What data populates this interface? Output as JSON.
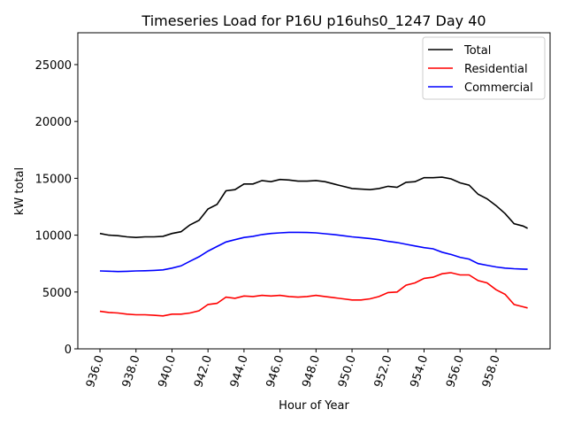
{
  "chart_data": {
    "type": "line",
    "title": "Timeseries Load for P16U p16uhs0_1247  Day 40",
    "xlabel": "Hour of Year",
    "ylabel": "kW total",
    "xlim": [
      934.77,
      961.0
    ],
    "ylim": [
      0,
      27800
    ],
    "xticks": [
      936,
      938,
      940,
      942,
      944,
      946,
      948,
      950,
      952,
      954,
      956,
      958
    ],
    "xtick_labels": [
      "936.0",
      "938.0",
      "940.0",
      "942.0",
      "944.0",
      "946.0",
      "948.0",
      "950.0",
      "952.0",
      "954.0",
      "956.0",
      "958.0"
    ],
    "yticks": [
      0,
      5000,
      10000,
      15000,
      20000,
      25000
    ],
    "ytick_labels": [
      "0",
      "5000",
      "10000",
      "15000",
      "20000",
      "25000"
    ],
    "grid": false,
    "legend_position": "top-right",
    "x": [
      936,
      936.5,
      937,
      937.5,
      938,
      938.5,
      939,
      939.5,
      940,
      940.5,
      941,
      941.5,
      942,
      942.5,
      943,
      943.5,
      944,
      944.5,
      945,
      945.5,
      946,
      946.5,
      947,
      947.5,
      948,
      948.5,
      949,
      949.5,
      950,
      950.5,
      951,
      951.5,
      952,
      952.5,
      953,
      953.5,
      954,
      954.5,
      955,
      955.5,
      956,
      956.5,
      957,
      957.5,
      958,
      958.5,
      959,
      959.5,
      959.75
    ],
    "series": [
      {
        "name": "Total",
        "color": "#000000",
        "values": [
          10150,
          10000,
          9950,
          9850,
          9800,
          9850,
          9850,
          9900,
          10150,
          10300,
          10900,
          11300,
          12300,
          12700,
          13900,
          14000,
          14500,
          14500,
          14800,
          14700,
          14900,
          14850,
          14750,
          14750,
          14800,
          14700,
          14500,
          14300,
          14100,
          14050,
          14000,
          14100,
          14300,
          14200,
          14650,
          14700,
          15050,
          15050,
          15100,
          14950,
          14600,
          14400,
          13600,
          13200,
          12600,
          11900,
          11000,
          10800,
          10600
        ]
      },
      {
        "name": "Residential",
        "color": "#ff0000",
        "values": [
          3300,
          3200,
          3150,
          3050,
          3000,
          3000,
          2950,
          2900,
          3050,
          3050,
          3150,
          3350,
          3900,
          4000,
          4550,
          4450,
          4650,
          4600,
          4700,
          4650,
          4700,
          4600,
          4550,
          4600,
          4700,
          4600,
          4500,
          4400,
          4300,
          4300,
          4400,
          4600,
          4950,
          5000,
          5600,
          5800,
          6200,
          6300,
          6600,
          6700,
          6500,
          6500,
          6000,
          5800,
          5200,
          4800,
          3900,
          3700,
          3600
        ]
      },
      {
        "name": "Commercial",
        "color": "#0000ff",
        "values": [
          6850,
          6830,
          6800,
          6820,
          6850,
          6870,
          6900,
          6950,
          7100,
          7300,
          7700,
          8100,
          8600,
          9000,
          9400,
          9600,
          9800,
          9900,
          10050,
          10150,
          10200,
          10250,
          10250,
          10230,
          10200,
          10120,
          10050,
          9950,
          9850,
          9780,
          9700,
          9600,
          9450,
          9350,
          9200,
          9050,
          8900,
          8800,
          8500,
          8300,
          8050,
          7900,
          7500,
          7350,
          7200,
          7100,
          7050,
          7020,
          7000
        ]
      }
    ]
  }
}
